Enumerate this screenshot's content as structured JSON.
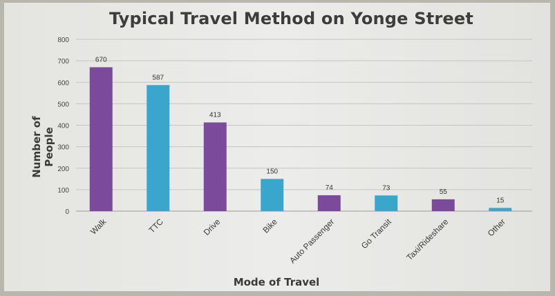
{
  "chart_data": {
    "type": "bar",
    "title": "Typical Travel Method on Yonge Street",
    "xlabel": "Mode of Travel",
    "ylabel": "Number of People",
    "ylim": [
      0,
      800
    ],
    "yticks": [
      0,
      100,
      200,
      300,
      400,
      500,
      600,
      700,
      800
    ],
    "grid": true,
    "legend": "none",
    "categories": [
      "Walk",
      "TTC",
      "Drive",
      "Bike",
      "Auto Passenger",
      "Go Transit",
      "Taxi/Rideshare",
      "Other"
    ],
    "values": [
      670,
      587,
      413,
      150,
      74,
      73,
      55,
      15
    ],
    "colors": [
      "#7b4a9a",
      "#3aa6cc",
      "#7b4a9a",
      "#3aa6cc",
      "#7b4a9a",
      "#3aa6cc",
      "#7b4a9a",
      "#3aa6cc"
    ]
  }
}
